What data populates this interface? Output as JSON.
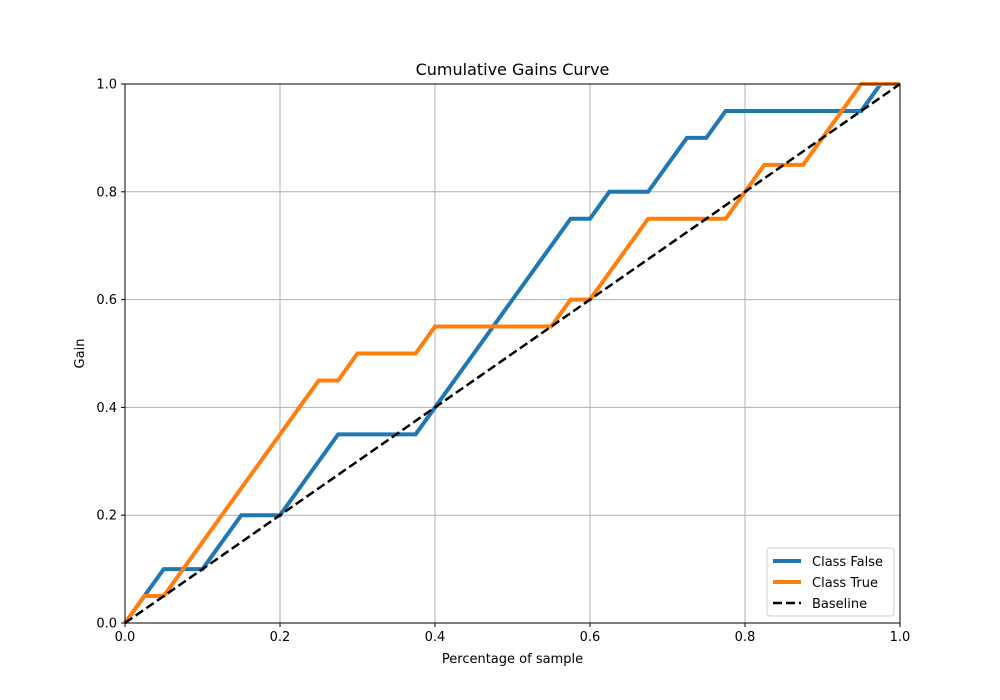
{
  "chart_data": {
    "type": "line",
    "title": "Cumulative Gains Curve",
    "xlabel": "Percentage of sample",
    "ylabel": "Gain",
    "xlim": [
      0,
      1
    ],
    "ylim": [
      0,
      1
    ],
    "xticks": [
      "0.0",
      "0.2",
      "0.4",
      "0.6",
      "0.8",
      "1.0"
    ],
    "yticks": [
      "0.0",
      "0.2",
      "0.4",
      "0.6",
      "0.8",
      "1.0"
    ],
    "grid": true,
    "legend_position": "lower-right",
    "series": [
      {
        "name": "Class False",
        "color": "#1f77b4",
        "style": "solid",
        "x": [
          0,
          0.05,
          0.1,
          0.15,
          0.2,
          0.275,
          0.375,
          0.475,
          0.575,
          0.6,
          0.625,
          0.675,
          0.725,
          0.75,
          0.775,
          0.95,
          0.975,
          1.0
        ],
        "y": [
          0,
          0.1,
          0.1,
          0.2,
          0.2,
          0.35,
          0.35,
          0.55,
          0.75,
          0.75,
          0.8,
          0.8,
          0.9,
          0.9,
          0.95,
          0.95,
          1.0,
          1.0
        ]
      },
      {
        "name": "Class True",
        "color": "#ff7f0e",
        "style": "solid",
        "x": [
          0,
          0.025,
          0.05,
          0.25,
          0.275,
          0.3,
          0.375,
          0.4,
          0.55,
          0.575,
          0.6,
          0.675,
          0.775,
          0.825,
          0.875,
          0.95,
          1.0
        ],
        "y": [
          0,
          0.05,
          0.05,
          0.45,
          0.45,
          0.5,
          0.5,
          0.55,
          0.55,
          0.6,
          0.6,
          0.75,
          0.75,
          0.85,
          0.85,
          1.0,
          1.0
        ]
      },
      {
        "name": "Baseline",
        "color": "#000000",
        "style": "dashed",
        "x": [
          0,
          1
        ],
        "y": [
          0,
          1
        ]
      }
    ]
  }
}
